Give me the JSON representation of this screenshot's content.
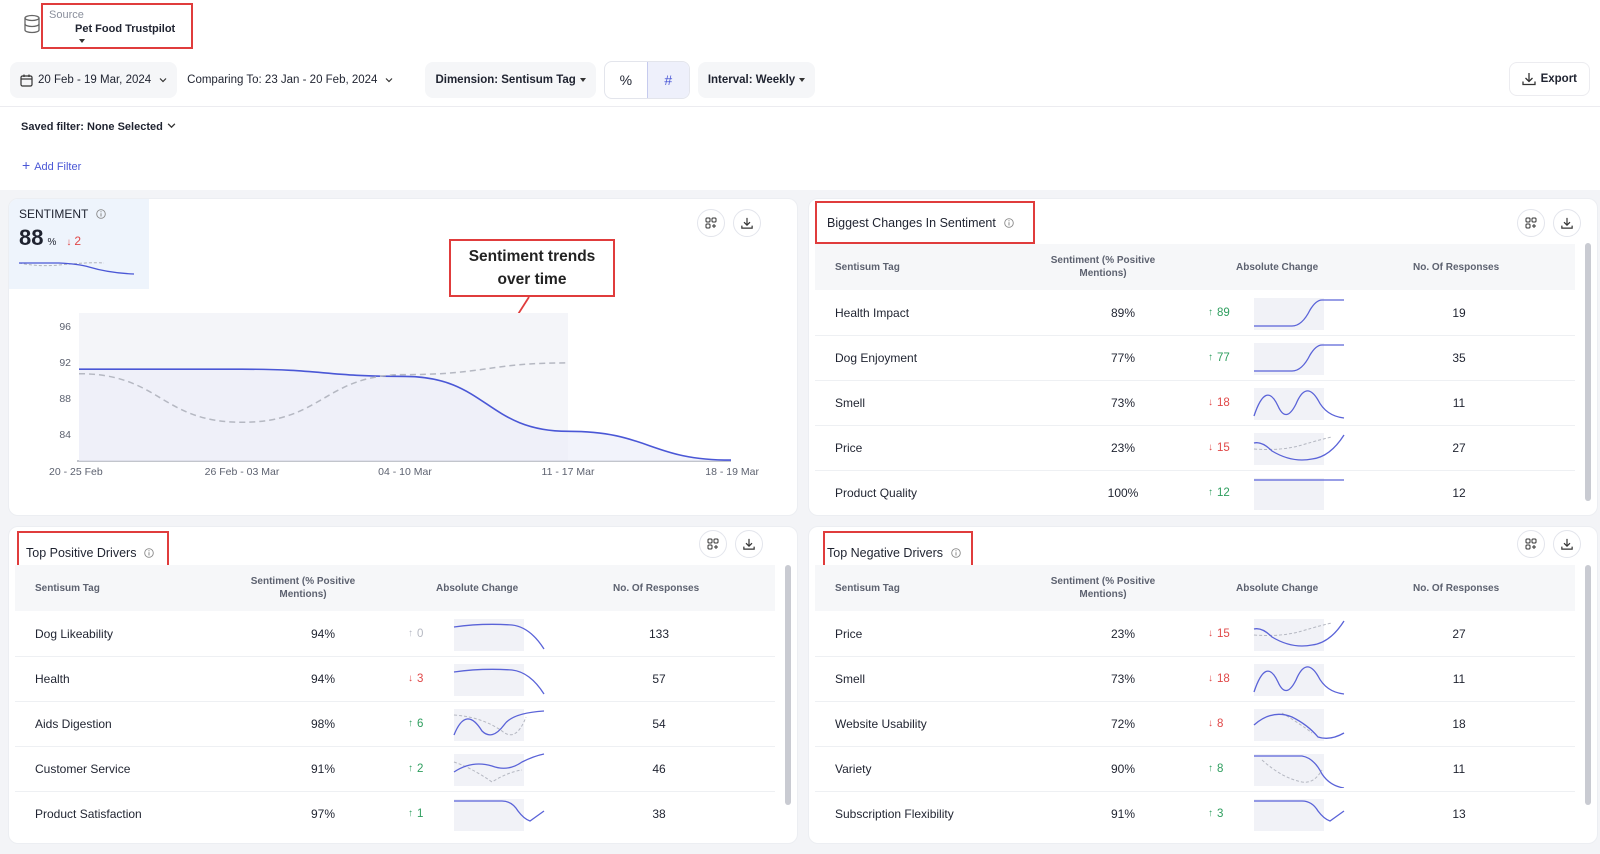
{
  "source": {
    "label": "Source",
    "value": "Pet Food Trustpilot"
  },
  "controls": {
    "date_range": "20 Feb - 19 Mar, 2024",
    "comparing": "Comparing To: 23 Jan - 20 Feb, 2024",
    "dimension": "Dimension: Sentisum Tag",
    "percent_symbol": "%",
    "hash_symbol": "#",
    "interval": "Interval: Weekly",
    "export": "Export"
  },
  "filters": {
    "saved": "Saved filter: None Selected",
    "add": "Add Filter"
  },
  "sentiment_card": {
    "label": "SENTIMENT",
    "value": "88",
    "unit": "%",
    "change": "2",
    "annotation_line1": "Sentiment trends",
    "annotation_line2": "over time"
  },
  "chart_data": {
    "type": "line",
    "x": [
      "20 - 25 Feb",
      "26 Feb - 03 Mar",
      "04 - 10 Mar",
      "11 - 17 Mar",
      "18 - 19 Mar"
    ],
    "yticks": [
      96,
      92,
      88,
      84
    ],
    "ylim": [
      81,
      97
    ],
    "series": [
      {
        "values": [
          91.2,
          91.2,
          90.4,
          84.3,
          81.1
        ]
      },
      {
        "values": [
          90.7,
          85.3,
          90.6,
          91.9,
          null
        ]
      }
    ],
    "legend": "none",
    "grid": false
  },
  "biggest_changes": {
    "title": "Biggest Changes In Sentiment",
    "headers": {
      "tag": "Sentisum Tag",
      "sentiment": "Sentiment (% Positive Mentions)",
      "change": "Absolute Change",
      "responses": "No. Of Responses"
    },
    "rows": [
      {
        "tag": "Health Impact",
        "sentiment": "89%",
        "dir": "up",
        "change": "89",
        "responses": "19",
        "spark": "rise"
      },
      {
        "tag": "Dog Enjoyment",
        "sentiment": "77%",
        "dir": "up",
        "change": "77",
        "responses": "35",
        "spark": "rise"
      },
      {
        "tag": "Smell",
        "sentiment": "73%",
        "dir": "down",
        "change": "18",
        "responses": "11",
        "spark": "waves"
      },
      {
        "tag": "Price",
        "sentiment": "23%",
        "dir": "down",
        "change": "15",
        "responses": "27",
        "spark": "dip"
      },
      {
        "tag": "Product Quality",
        "sentiment": "100%",
        "dir": "up",
        "change": "12",
        "responses": "12",
        "spark": "flat"
      }
    ]
  },
  "top_positive": {
    "title": "Top Positive Drivers",
    "headers": {
      "tag": "Sentisum Tag",
      "sentiment": "Sentiment (% Positive Mentions)",
      "change": "Absolute Change",
      "responses": "No. Of Responses"
    },
    "rows": [
      {
        "tag": "Dog Likeability",
        "sentiment": "94%",
        "dir": "neutral",
        "change": "0",
        "responses": "133",
        "spark": "fall"
      },
      {
        "tag": "Health",
        "sentiment": "94%",
        "dir": "down",
        "change": "3",
        "responses": "57",
        "spark": "fall"
      },
      {
        "tag": "Aids Digestion",
        "sentiment": "98%",
        "dir": "up",
        "change": "6",
        "responses": "54",
        "spark": "vee"
      },
      {
        "tag": "Customer Service",
        "sentiment": "91%",
        "dir": "up",
        "change": "2",
        "responses": "46",
        "spark": "wave"
      },
      {
        "tag": "Product Satisfaction",
        "sentiment": "97%",
        "dir": "up",
        "change": "1",
        "responses": "38",
        "spark": "drop"
      }
    ]
  },
  "top_negative": {
    "title": "Top Negative Drivers",
    "headers": {
      "tag": "Sentisum Tag",
      "sentiment": "Sentiment (% Positive Mentions)",
      "change": "Absolute Change",
      "responses": "No. Of Responses"
    },
    "rows": [
      {
        "tag": "Price",
        "sentiment": "23%",
        "dir": "down",
        "change": "15",
        "responses": "27",
        "spark": "dip"
      },
      {
        "tag": "Smell",
        "sentiment": "73%",
        "dir": "down",
        "change": "18",
        "responses": "11",
        "spark": "waves"
      },
      {
        "tag": "Website Usability",
        "sentiment": "72%",
        "dir": "down",
        "change": "8",
        "responses": "18",
        "spark": "valley"
      },
      {
        "tag": "Variety",
        "sentiment": "90%",
        "dir": "up",
        "change": "8",
        "responses": "11",
        "spark": "bowl"
      },
      {
        "tag": "Subscription Flexibility",
        "sentiment": "91%",
        "dir": "up",
        "change": "3",
        "responses": "13",
        "spark": "drop"
      }
    ]
  },
  "colors": {
    "accent": "#4a57d6",
    "up": "#2e9e5e",
    "down": "#e04848",
    "annotation": "#e03c3c"
  }
}
